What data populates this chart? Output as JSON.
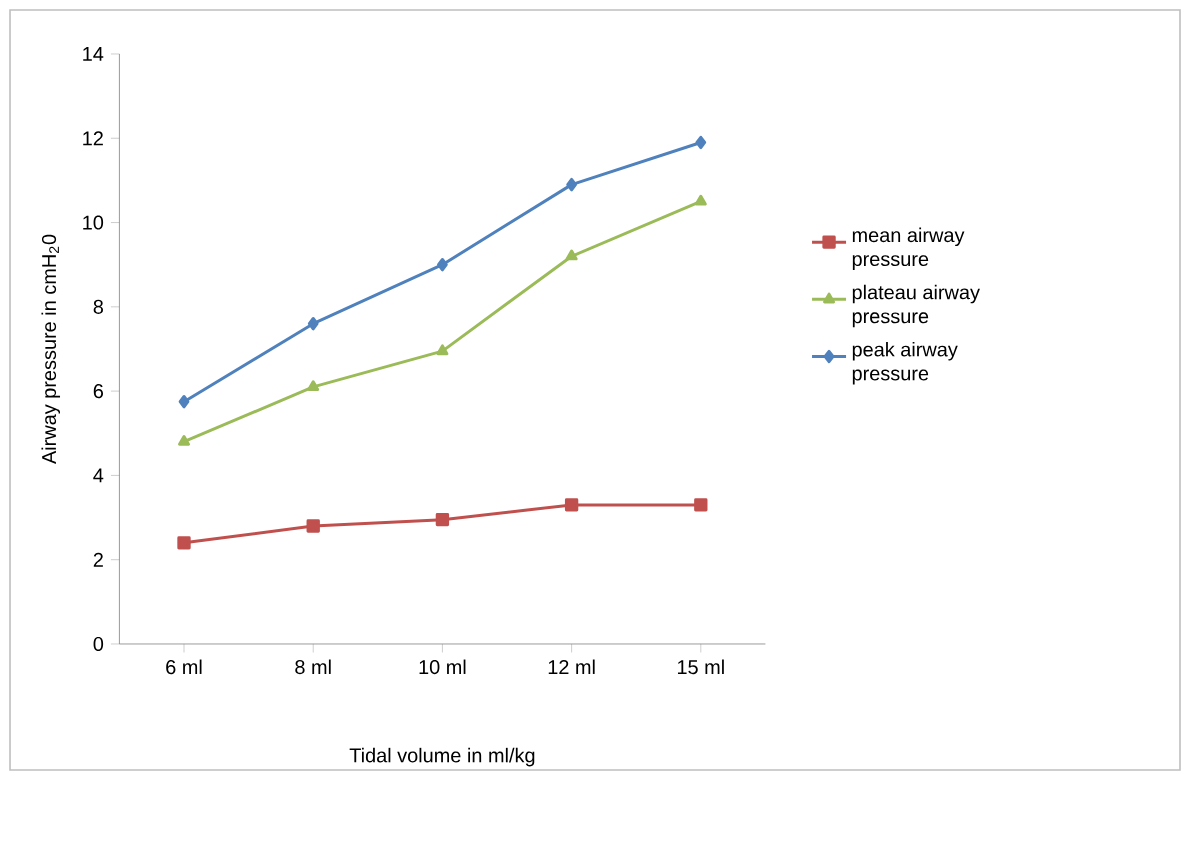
{
  "chart_data": {
    "type": "line",
    "xlabel": "Tidal volume in ml/kg",
    "ylabel": "Airway pressure in cmH$_{2}$0",
    "categories": [
      "6 ml",
      "8 ml",
      "10 ml",
      "12 ml",
      "15 ml"
    ],
    "series": [
      {
        "name": "mean airway pressure",
        "color": "#c0504d",
        "marker": "square",
        "values": [
          2.4,
          2.8,
          2.95,
          3.3,
          3.3
        ]
      },
      {
        "name": "plateau airway pressure",
        "color": "#9bbb59",
        "marker": "triangle",
        "values": [
          4.8,
          6.1,
          6.95,
          9.2,
          10.5
        ]
      },
      {
        "name": "peak airway pressure",
        "color": "#4f81bd",
        "marker": "diamond",
        "values": [
          5.75,
          7.6,
          9.0,
          10.9,
          11.9
        ]
      }
    ],
    "ylim": [
      0,
      14
    ],
    "yticks": [
      0,
      2,
      4,
      6,
      8,
      10,
      12,
      14
    ],
    "legend": "right"
  }
}
